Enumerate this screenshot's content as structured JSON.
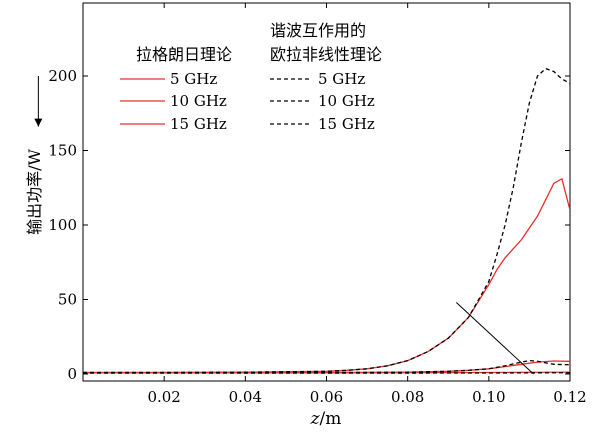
{
  "chart_data": {
    "type": "line",
    "title": "",
    "xlabel": "z/m",
    "xlabel_italic_part": "z",
    "xlabel_rest": "/m",
    "ylabel": "输出功率/W",
    "xlim": [
      0.0,
      0.12
    ],
    "ylim": [
      0,
      220
    ],
    "xticks": [
      0.02,
      0.04,
      0.06,
      0.08,
      0.1,
      0.12
    ],
    "xtick_labels": [
      "0.02",
      "0.04",
      "0.06",
      "0.08",
      "0.10",
      "0.12"
    ],
    "yticks": [
      0,
      50,
      100,
      150,
      200
    ],
    "ytick_labels": [
      "0",
      "50",
      "100",
      "150",
      "200"
    ],
    "grid": false,
    "legend": {
      "placement": "top-left",
      "group1_title": "拉格朗日理论",
      "group2_title_line1": "谐波互作用的",
      "group2_title_line2": "欧拉非线性理论",
      "labels": [
        "5 GHz",
        "10 GHz",
        "15 GHz"
      ]
    },
    "series": [
      {
        "name": "5 GHz",
        "group": "拉格朗日理论",
        "color": "#e8302a",
        "dash": "solid",
        "x": [
          0.0,
          0.02,
          0.04,
          0.06,
          0.065,
          0.07,
          0.075,
          0.08,
          0.085,
          0.09,
          0.095,
          0.1,
          0.102,
          0.104,
          0.106,
          0.108,
          0.11,
          0.112,
          0.114,
          0.116,
          0.118,
          0.12
        ],
        "y": [
          1,
          1,
          1.2,
          1.8,
          2.5,
          3.5,
          5.5,
          9,
          15,
          24,
          38,
          60,
          70,
          78,
          84,
          90,
          98,
          106,
          117,
          128,
          131,
          110
        ]
      },
      {
        "name": "10 GHz",
        "group": "拉格朗日理论",
        "color": "#e8302a",
        "dash": "solid",
        "x": [
          0.0,
          0.06,
          0.08,
          0.09,
          0.095,
          0.1,
          0.104,
          0.108,
          0.112,
          0.116,
          0.12
        ],
        "y": [
          1,
          1,
          1.2,
          1.8,
          2.5,
          3.5,
          5,
          6.5,
          8,
          8.7,
          8.5
        ]
      },
      {
        "name": "15 GHz",
        "group": "拉格朗日理论",
        "color": "#e8302a",
        "dash": "solid",
        "x": [
          0.0,
          0.06,
          0.1,
          0.12
        ],
        "y": [
          0.8,
          0.8,
          1.0,
          1.3
        ]
      },
      {
        "name": "5 GHz",
        "group": "欧拉非线性理论",
        "color": "#000000",
        "dash": "dashed",
        "x": [
          0.0,
          0.02,
          0.04,
          0.06,
          0.065,
          0.07,
          0.075,
          0.08,
          0.085,
          0.09,
          0.095,
          0.1,
          0.102,
          0.104,
          0.106,
          0.108,
          0.11,
          0.112,
          0.114,
          0.116,
          0.118,
          0.12
        ],
        "y": [
          1,
          1,
          1.2,
          1.8,
          2.5,
          3.5,
          5.5,
          9,
          15,
          24,
          38,
          62,
          80,
          100,
          125,
          155,
          182,
          200,
          205,
          203,
          198,
          195
        ]
      },
      {
        "name": "10 GHz",
        "group": "欧拉非线性理论",
        "color": "#000000",
        "dash": "dashed",
        "x": [
          0.0,
          0.06,
          0.08,
          0.09,
          0.095,
          0.1,
          0.104,
          0.108,
          0.11,
          0.112,
          0.114,
          0.116,
          0.12
        ],
        "y": [
          1,
          1,
          1.2,
          1.8,
          2.5,
          3.5,
          5.5,
          8,
          9,
          8.5,
          7.5,
          6.5,
          6.2
        ]
      },
      {
        "name": "15 GHz",
        "group": "欧拉非线性理论",
        "color": "#000000",
        "dash": "dashed",
        "x": [
          0.0,
          0.06,
          0.1,
          0.12
        ],
        "y": [
          0.6,
          0.6,
          0.7,
          0.9
        ]
      }
    ],
    "annotations": [
      {
        "type": "line",
        "from": [
          0.092,
          48
        ],
        "to": [
          0.111,
          0
        ],
        "color": "#000000"
      },
      {
        "type": "arrow",
        "from": [
          -0.011,
          200
        ],
        "to": [
          -0.011,
          166
        ],
        "color": "#000000"
      }
    ]
  }
}
